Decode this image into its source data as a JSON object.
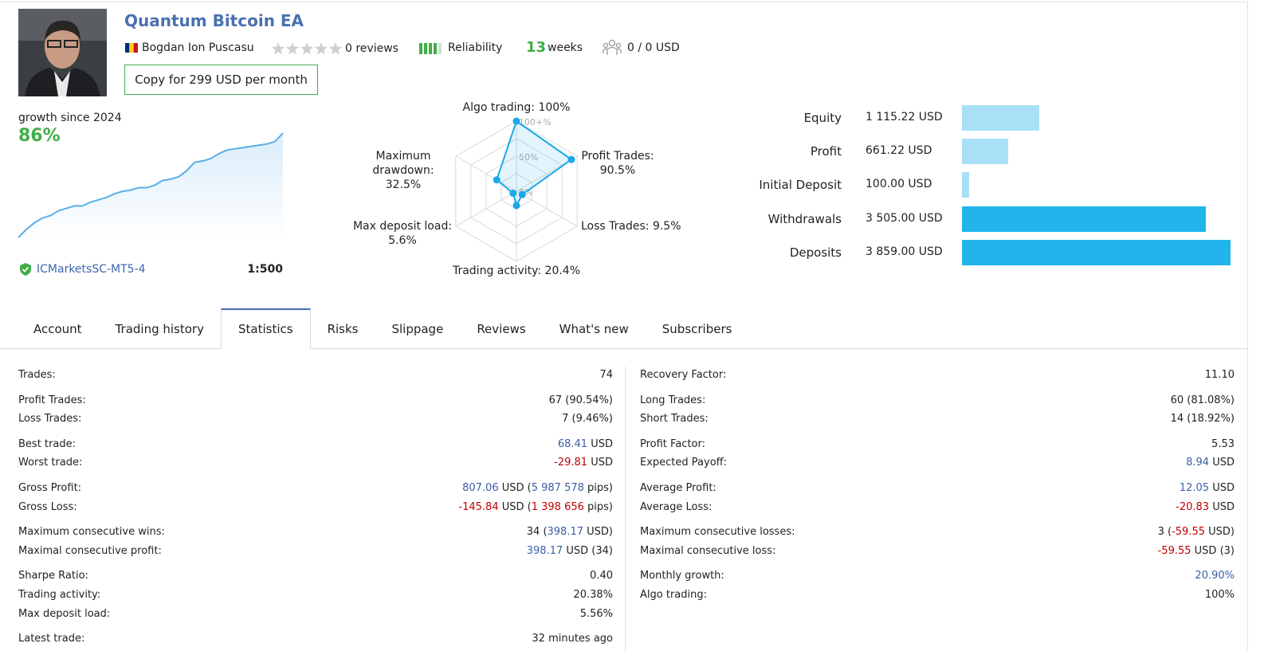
{
  "header": {
    "title": "Quantum Bitcoin EA",
    "author": "Bogdan Ion Puscasu",
    "reviews": "0 reviews",
    "reliability": "Reliability",
    "weeks_value": "13",
    "weeks_label": "weeks",
    "subscribers": "0 / 0 USD",
    "copy_button": "Copy for 299 USD per month"
  },
  "growth": {
    "label": "growth since 2024",
    "value": "86%",
    "broker": "ICMarketsSC-MT5-4",
    "leverage": "1:500",
    "chart": {
      "type": "line",
      "color": "#5aaee6",
      "values": [
        0,
        6.6,
        12,
        16,
        18,
        22,
        24,
        26,
        26,
        29,
        31,
        33,
        36,
        38,
        39,
        41,
        41,
        43,
        47,
        48,
        50,
        55,
        62,
        63,
        65,
        69,
        72,
        73,
        74,
        75,
        76,
        77,
        79,
        86
      ]
    }
  },
  "radar": {
    "type": "radar",
    "color": "#1ba8e6",
    "categories": [
      "Algo trading:",
      "Profit Trades:",
      "Loss Trades:",
      "Trading activity:",
      "Max deposit load:",
      "Maximum drawdown:"
    ],
    "values": [
      100,
      90.5,
      9.5,
      20.4,
      5.6,
      32.5
    ],
    "value_labels": [
      "100%",
      "90.5%",
      "9.5%",
      "20.4%",
      "5.6%",
      "32.5%"
    ],
    "rlim": [
      0,
      100
    ],
    "rticks": [
      {
        "value": 0,
        "label": "0%"
      },
      {
        "value": 50,
        "label": "50%"
      },
      {
        "value": 100,
        "label": "100+%"
      }
    ]
  },
  "balance": {
    "type": "bar",
    "orientation": "horizontal",
    "categories": [
      "Equity",
      "Profit",
      "Initial Deposit",
      "Withdrawals",
      "Deposits"
    ],
    "values": [
      1115.22,
      661.22,
      100.0,
      3505.0,
      3859.0
    ],
    "value_labels": [
      "1 115.22 USD",
      "661.22 USD",
      "100.00 USD",
      "3 505.00 USD",
      "3 859.00 USD"
    ],
    "colors": [
      "#a8e0f8",
      "#a8e0f8",
      "#a8e0f8",
      "#22b5ec",
      "#22b5ec"
    ]
  },
  "tabs": {
    "items": [
      "Account",
      "Trading history",
      "Statistics",
      "Risks",
      "Slippage",
      "Reviews",
      "What's new",
      "Subscribers"
    ],
    "active": 2
  },
  "statistics": {
    "left": [
      [
        {
          "label": "Trades:",
          "value": [
            {
              "text": "74"
            }
          ]
        }
      ],
      [
        {
          "label": "Profit Trades:",
          "value": [
            {
              "text": "67 (90.54%)"
            }
          ]
        },
        {
          "label": "Loss Trades:",
          "value": [
            {
              "text": "7 (9.46%)"
            }
          ]
        }
      ],
      [
        {
          "label": "Best trade:",
          "value": [
            {
              "text": "68.41",
              "tone": "positive"
            },
            {
              "text": " USD"
            }
          ]
        },
        {
          "label": "Worst trade:",
          "value": [
            {
              "text": "-29.81",
              "tone": "negative"
            },
            {
              "text": " USD"
            }
          ]
        }
      ],
      [
        {
          "label": "Gross Profit:",
          "value": [
            {
              "text": "807.06",
              "tone": "positive"
            },
            {
              "text": " USD ("
            },
            {
              "text": "5 987 578",
              "tone": "positive"
            },
            {
              "text": " pips)"
            }
          ]
        },
        {
          "label": "Gross Loss:",
          "value": [
            {
              "text": "-145.84",
              "tone": "negative"
            },
            {
              "text": " USD ("
            },
            {
              "text": "1 398 656",
              "tone": "negative"
            },
            {
              "text": " pips)"
            }
          ]
        }
      ],
      [
        {
          "label": "Maximum consecutive wins:",
          "value": [
            {
              "text": "34 ("
            },
            {
              "text": "398.17",
              "tone": "positive"
            },
            {
              "text": " USD)"
            }
          ]
        },
        {
          "label": "Maximal consecutive profit:",
          "value": [
            {
              "text": "398.17",
              "tone": "positive"
            },
            {
              "text": " USD (34)"
            }
          ]
        }
      ],
      [
        {
          "label": "Sharpe Ratio:",
          "value": [
            {
              "text": "0.40"
            }
          ]
        },
        {
          "label": "Trading activity:",
          "value": [
            {
              "text": "20.38%"
            }
          ]
        },
        {
          "label": "Max deposit load:",
          "value": [
            {
              "text": "5.56%"
            }
          ]
        }
      ],
      [
        {
          "label": "Latest trade:",
          "value": [
            {
              "text": "32 minutes ago"
            }
          ]
        }
      ]
    ],
    "right": [
      [
        {
          "label": "Recovery Factor:",
          "value": [
            {
              "text": "11.10"
            }
          ]
        }
      ],
      [
        {
          "label": "Long Trades:",
          "value": [
            {
              "text": "60 (81.08%)"
            }
          ]
        },
        {
          "label": "Short Trades:",
          "value": [
            {
              "text": "14 (18.92%)"
            }
          ]
        }
      ],
      [
        {
          "label": "Profit Factor:",
          "value": [
            {
              "text": "5.53"
            }
          ]
        },
        {
          "label": "Expected Payoff:",
          "value": [
            {
              "text": "8.94",
              "tone": "positive"
            },
            {
              "text": " USD"
            }
          ]
        }
      ],
      [
        {
          "label": "Average Profit:",
          "value": [
            {
              "text": "12.05",
              "tone": "positive"
            },
            {
              "text": " USD"
            }
          ]
        },
        {
          "label": "Average Loss:",
          "value": [
            {
              "text": "-20.83",
              "tone": "negative"
            },
            {
              "text": " USD"
            }
          ]
        }
      ],
      [
        {
          "label": "Maximum consecutive losses:",
          "value": [
            {
              "text": "3 ("
            },
            {
              "text": "-59.55",
              "tone": "negative"
            },
            {
              "text": " USD)"
            }
          ]
        },
        {
          "label": "Maximal consecutive loss:",
          "value": [
            {
              "text": "-59.55",
              "tone": "negative"
            },
            {
              "text": " USD (3)"
            }
          ]
        }
      ],
      [
        {
          "label": "Monthly growth:",
          "value": [
            {
              "text": "20.90%",
              "tone": "positive"
            }
          ]
        },
        {
          "label": "Algo trading:",
          "value": [
            {
              "text": "100%"
            }
          ]
        }
      ]
    ]
  }
}
